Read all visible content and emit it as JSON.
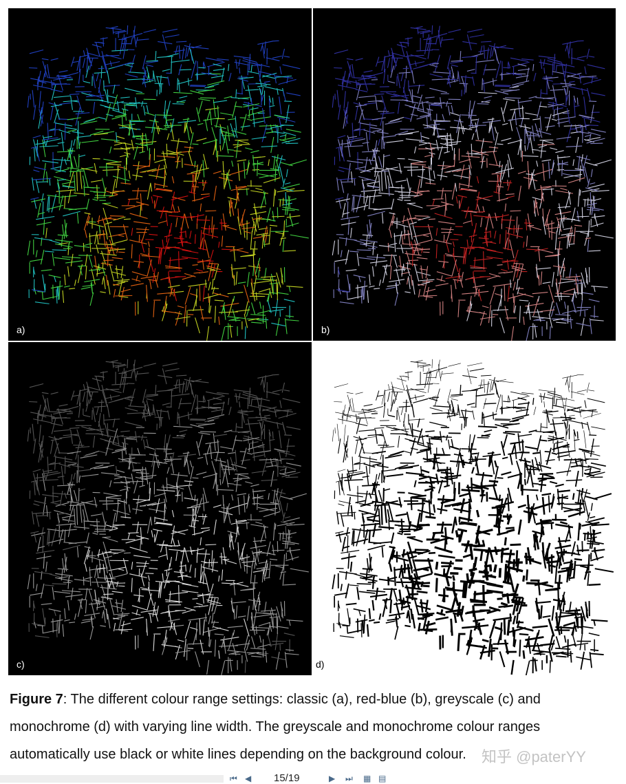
{
  "figure": {
    "panels": [
      {
        "label": "a)",
        "scheme": "classic",
        "background": "#000000",
        "colors": [
          "#2040c0",
          "#20c0c0",
          "#40d040",
          "#c0d020",
          "#e06010",
          "#d01010"
        ]
      },
      {
        "label": "b)",
        "scheme": "red-blue",
        "background": "#000000",
        "colors": [
          "#3030a0",
          "#8080c0",
          "#d0d0e0",
          "#d08080",
          "#c02020"
        ]
      },
      {
        "label": "c)",
        "scheme": "greyscale",
        "background": "#000000",
        "colors": [
          "#555555",
          "#999999",
          "#dddddd"
        ]
      },
      {
        "label": "d)",
        "scheme": "monochrome",
        "background": "#ffffff",
        "colors": [
          "#000000"
        ]
      }
    ]
  },
  "caption": {
    "label": "Figure 7",
    "text": ": The different colour range settings: classic (a), red-blue (b), greyscale (c) and monochrome (d) with varying line width. The greyscale and monochrome colour ranges automatically use black or white lines depending on the background colour."
  },
  "watermark": "知乎 @paterYY",
  "viewer": {
    "page": "15/19",
    "icons": [
      "first-page-icon",
      "prev-page-icon",
      "next-page-icon",
      "last-page-icon",
      "fit-page-icon",
      "fit-width-icon"
    ]
  }
}
